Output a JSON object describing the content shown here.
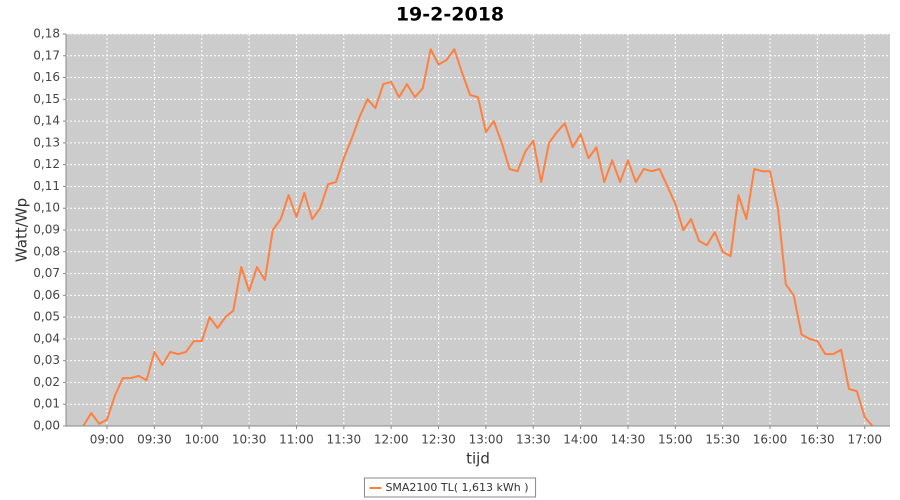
{
  "chart_data": {
    "type": "line",
    "title": "19-2-2018",
    "x_label": "tijd",
    "y_label": "Watt/Wp",
    "x": [
      "08:45",
      "08:50",
      "08:55",
      "09:00",
      "09:05",
      "09:10",
      "09:15",
      "09:20",
      "09:25",
      "09:30",
      "09:35",
      "09:40",
      "09:45",
      "09:50",
      "09:55",
      "10:00",
      "10:05",
      "10:10",
      "10:15",
      "10:20",
      "10:25",
      "10:30",
      "10:35",
      "10:40",
      "10:45",
      "10:50",
      "10:55",
      "11:00",
      "11:05",
      "11:10",
      "11:15",
      "11:20",
      "11:25",
      "11:30",
      "11:35",
      "11:40",
      "11:45",
      "11:50",
      "11:55",
      "12:00",
      "12:05",
      "12:10",
      "12:15",
      "12:20",
      "12:25",
      "12:30",
      "12:35",
      "12:40",
      "12:45",
      "12:50",
      "12:55",
      "13:00",
      "13:05",
      "13:10",
      "13:15",
      "13:20",
      "13:25",
      "13:30",
      "13:35",
      "13:40",
      "13:45",
      "13:50",
      "13:55",
      "14:00",
      "14:05",
      "14:10",
      "14:15",
      "14:20",
      "14:25",
      "14:30",
      "14:35",
      "14:40",
      "14:45",
      "14:50",
      "14:55",
      "15:00",
      "15:05",
      "15:10",
      "15:15",
      "15:20",
      "15:25",
      "15:30",
      "15:35",
      "15:40",
      "15:45",
      "15:50",
      "15:55",
      "16:00",
      "16:05",
      "16:10",
      "16:15",
      "16:20",
      "16:25",
      "16:30",
      "16:35",
      "16:40",
      "16:45",
      "16:50",
      "16:55",
      "17:00",
      "17:05"
    ],
    "series": [
      {
        "name": "SMA2100 TL( 1,613 kWh )",
        "color": "#ff8040",
        "values": [
          0.0,
          0.006,
          0.001,
          0.003,
          0.014,
          0.022,
          0.022,
          0.023,
          0.021,
          0.034,
          0.028,
          0.034,
          0.033,
          0.034,
          0.039,
          0.039,
          0.05,
          0.045,
          0.05,
          0.053,
          0.073,
          0.062,
          0.073,
          0.067,
          0.09,
          0.095,
          0.106,
          0.096,
          0.107,
          0.095,
          0.1,
          0.111,
          0.112,
          0.123,
          0.132,
          0.142,
          0.15,
          0.146,
          0.157,
          0.158,
          0.151,
          0.157,
          0.151,
          0.155,
          0.173,
          0.166,
          0.168,
          0.173,
          0.162,
          0.152,
          0.151,
          0.135,
          0.14,
          0.13,
          0.118,
          0.117,
          0.126,
          0.131,
          0.112,
          0.13,
          0.135,
          0.139,
          0.128,
          0.134,
          0.123,
          0.128,
          0.112,
          0.122,
          0.112,
          0.122,
          0.112,
          0.118,
          0.117,
          0.118,
          0.11,
          0.102,
          0.09,
          0.095,
          0.085,
          0.083,
          0.089,
          0.08,
          0.078,
          0.106,
          0.095,
          0.118,
          0.117,
          0.117,
          0.1,
          0.065,
          0.06,
          0.042,
          0.04,
          0.039,
          0.033,
          0.033,
          0.035,
          0.017,
          0.016,
          0.004,
          0.0
        ]
      }
    ],
    "xlim": [
      "08:34",
      "17:16"
    ],
    "xticks": [
      "09:00",
      "09:30",
      "10:00",
      "10:30",
      "11:00",
      "11:30",
      "12:00",
      "12:30",
      "13:00",
      "13:30",
      "14:00",
      "14:30",
      "15:00",
      "15:30",
      "16:00",
      "16:30",
      "17:00"
    ],
    "ylim": [
      0,
      0.18
    ],
    "yticks": [
      {
        "value": 0,
        "label": "0,00"
      },
      {
        "value": 0.01,
        "label": "0,01"
      },
      {
        "value": 0.02,
        "label": "0,02"
      },
      {
        "value": 0.03,
        "label": "0,03"
      },
      {
        "value": 0.04,
        "label": "0,04"
      },
      {
        "value": 0.05,
        "label": "0,05"
      },
      {
        "value": 0.06,
        "label": "0,06"
      },
      {
        "value": 0.07,
        "label": "0,07"
      },
      {
        "value": 0.08,
        "label": "0,08"
      },
      {
        "value": 0.09,
        "label": "0,09"
      },
      {
        "value": 0.1,
        "label": "0,10"
      },
      {
        "value": 0.11,
        "label": "0,11"
      },
      {
        "value": 0.12,
        "label": "0,12"
      },
      {
        "value": 0.13,
        "label": "0,13"
      },
      {
        "value": 0.14,
        "label": "0,14"
      },
      {
        "value": 0.15,
        "label": "0,15"
      },
      {
        "value": 0.16,
        "label": "0,16"
      },
      {
        "value": 0.17,
        "label": "0,17"
      },
      {
        "value": 0.18,
        "label": "0,18"
      }
    ],
    "grid": true,
    "legend": "bottom"
  }
}
